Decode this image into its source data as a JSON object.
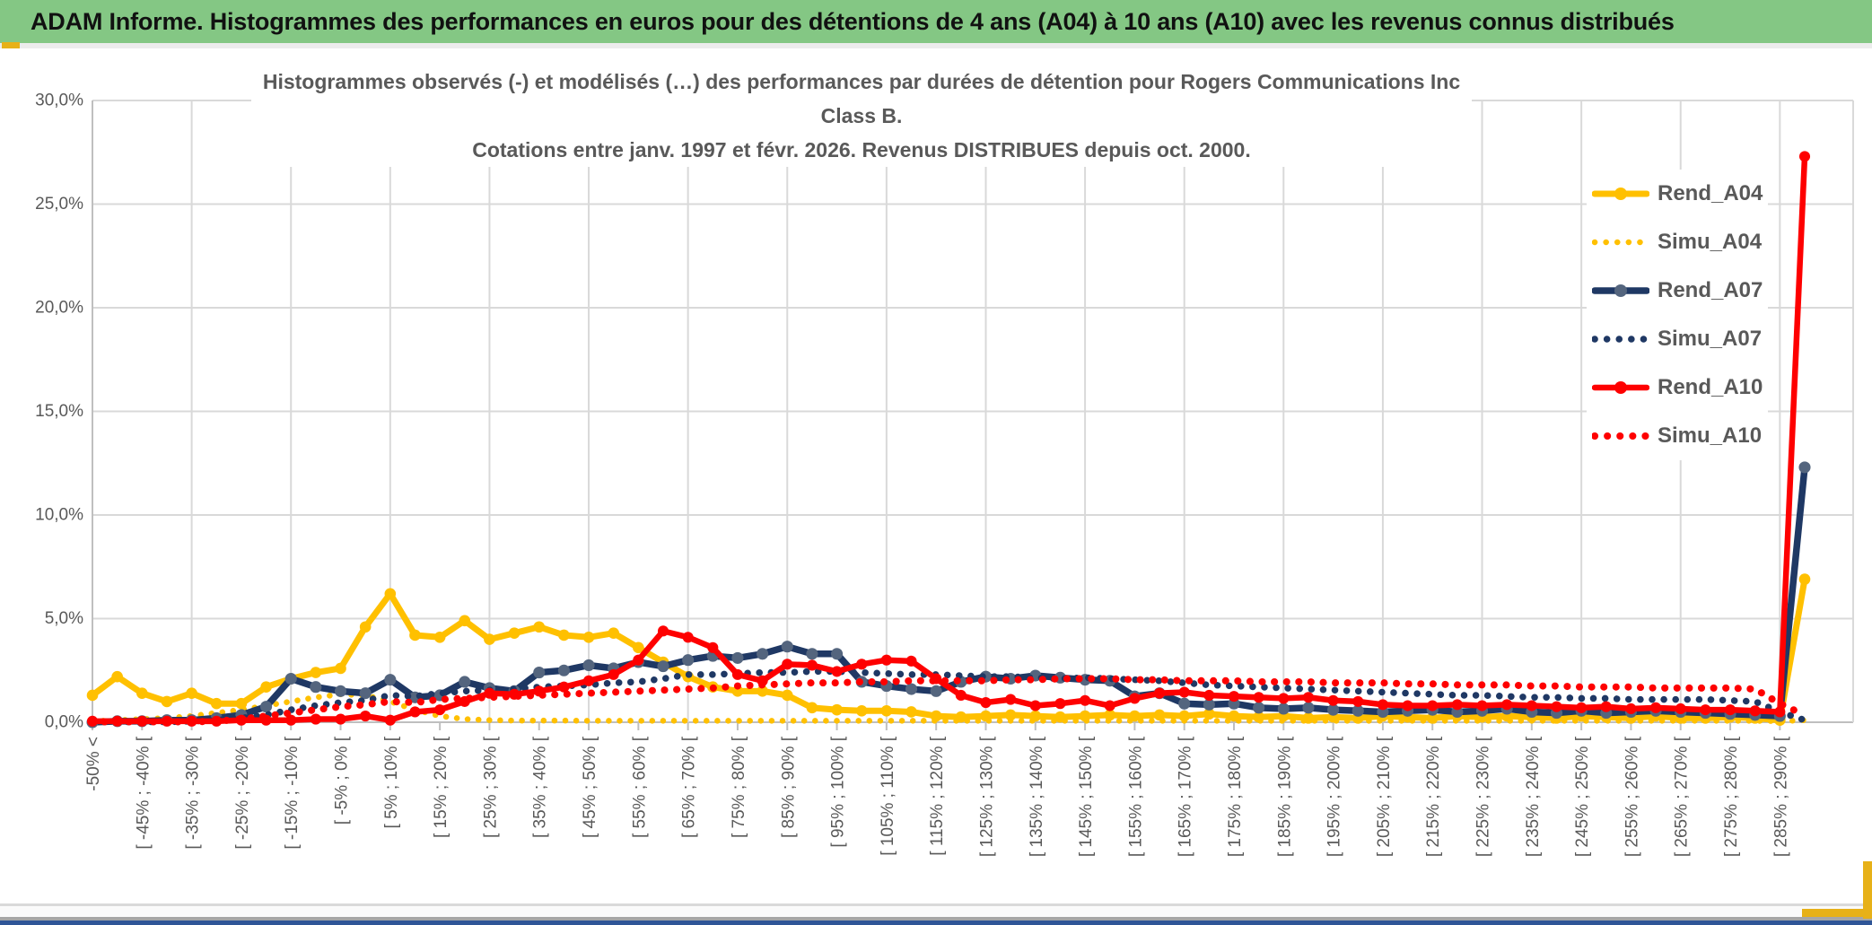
{
  "banner": {
    "title": "ADAM Informe. Histogrammes des performances en euros pour des détentions de 4 ans (A04) à 10 ans (A10) avec les revenus connus distribués",
    "background_color": "#84C784",
    "accent_color": "#E7B118"
  },
  "chart": {
    "title_line1": "Histogrammes observés (-) et modélisés (…) des performances par durées de détention pour Rogers Communications Inc Class B.",
    "title_line2": "Cotations entre janv. 1997 et févr. 2026. Revenus DISTRIBUES depuis oct. 2000.",
    "text_color": "#595959",
    "gridline_color": "#D9D9D9",
    "axis_color": "#BFBFBF"
  },
  "chart_data": {
    "type": "line",
    "title": "Histogrammes observés (-) et modélisés (…) des performances par durées de détention pour Rogers Communications Inc Class B.",
    "subtitle": "Cotations entre janv. 1997 et févr. 2026. Revenus DISTRIBUES depuis oct. 2000.",
    "ylabel": "",
    "xlabel": "",
    "ylim": [
      0,
      30
    ],
    "y_tick_labels": [
      "0,0%",
      "5,0%",
      "10,0%",
      "15,0%",
      "20,0%",
      "25,0%",
      "30,0%"
    ],
    "y_tick_values": [
      0,
      5,
      10,
      15,
      20,
      25,
      30
    ],
    "grid": "horizontal and vertical, light gray",
    "legend_position": "right-top, vertical",
    "n_points": 70,
    "x_label_interval": 2,
    "x_gridline_interval": 4,
    "x_tick_labels": [
      "-50% <",
      "[ -45% ; -40% [",
      "[ -35% ; -30% [",
      "[ -25% ; -20% [",
      "[ -15% ; -10% [",
      "[ -5% ; 0% [",
      "[ 5% ; 10% [",
      "[ 15% ; 20% [",
      "[ 25% ; 30% [",
      "[ 35% ; 40% [",
      "[ 45% ; 50% [",
      "[ 55% ; 60% [",
      "[ 65% ; 70% [",
      "[ 75% ; 80% [",
      "[ 85% ; 90% [",
      "[ 95% ; 100% [",
      "[ 105% ; 110% [",
      "[ 115% ; 120% [",
      "[ 125% ; 130% [",
      "[ 135% ; 140% [",
      "[ 145% ; 150% [",
      "[ 155% ; 160% [",
      "[ 165% ; 170% [",
      "[ 175% ; 180% [",
      "[ 185% ; 190% [",
      "[ 195% ; 200% [",
      "[ 205% ; 210% [",
      "[ 215% ; 220% [",
      "[ 225% ; 230% [",
      "[ 235% ; 240% [",
      "[ 245% ; 250% [",
      "[ 255% ; 260% [",
      "[ 265% ; 270% [",
      "[ 275% ; 280% [",
      "[ 285% ; 290% ["
    ],
    "series": [
      {
        "name": "Rend_A04",
        "style": "solid",
        "color": "#FFC000",
        "marker_color": "#FFC000",
        "line_width": 7,
        "values": [
          1.3,
          2.2,
          1.4,
          1.0,
          1.4,
          0.9,
          0.9,
          1.7,
          2.1,
          2.4,
          2.6,
          4.6,
          6.2,
          4.2,
          4.1,
          4.9,
          4.0,
          4.3,
          4.6,
          4.2,
          4.1,
          4.3,
          3.6,
          2.9,
          2.2,
          1.7,
          1.5,
          1.5,
          1.3,
          0.7,
          0.6,
          0.55,
          0.55,
          0.5,
          0.3,
          0.25,
          0.3,
          0.35,
          0.3,
          0.25,
          0.3,
          0.35,
          0.3,
          0.35,
          0.3,
          0.4,
          0.3,
          0.25,
          0.3,
          0.2,
          0.25,
          0.2,
          0.3,
          0.25,
          0.2,
          0.3,
          0.25,
          0.3,
          0.25,
          0.2,
          0.3,
          0.25,
          0.2,
          0.3,
          0.2,
          0.2,
          0.25,
          0.2,
          0.1,
          6.9
        ]
      },
      {
        "name": "Simu_A04",
        "style": "dotted",
        "color": "#FFC000",
        "line_width": 6.5,
        "values": [
          0.05,
          0.1,
          0.15,
          0.2,
          0.3,
          0.45,
          0.6,
          0.8,
          1.0,
          1.2,
          1.35,
          1.3,
          1.0,
          0.6,
          0.3,
          0.15,
          0.1,
          0.08,
          0.08,
          0.08,
          0.07,
          0.07,
          0.07,
          0.07,
          0.07,
          0.07,
          0.07,
          0.07,
          0.07,
          0.07,
          0.07,
          0.07,
          0.07,
          0.07,
          0.07,
          0.07,
          0.07,
          0.07,
          0.07,
          0.07,
          0.07,
          0.07,
          0.07,
          0.07,
          0.07,
          0.07,
          0.07,
          0.07,
          0.07,
          0.07,
          0.07,
          0.07,
          0.07,
          0.07,
          0.07,
          0.07,
          0.07,
          0.07,
          0.07,
          0.07,
          0.07,
          0.07,
          0.07,
          0.07,
          0.07,
          0.07,
          0.07,
          0.07,
          0.05,
          0.1
        ]
      },
      {
        "name": "Rend_A07",
        "style": "solid",
        "color": "#1F3864",
        "marker_color": "#54657E",
        "line_width": 7.5,
        "values": [
          0.0,
          0.05,
          0.05,
          0.1,
          0.1,
          0.2,
          0.35,
          0.75,
          2.1,
          1.7,
          1.5,
          1.4,
          2.05,
          1.2,
          1.3,
          1.95,
          1.65,
          1.5,
          2.4,
          2.5,
          2.75,
          2.6,
          2.9,
          2.7,
          3.0,
          3.2,
          3.1,
          3.3,
          3.65,
          3.3,
          3.3,
          1.95,
          1.75,
          1.6,
          1.5,
          1.95,
          2.2,
          2.1,
          2.25,
          2.15,
          2.05,
          2.0,
          1.25,
          1.4,
          0.9,
          0.85,
          0.9,
          0.7,
          0.65,
          0.7,
          0.6,
          0.55,
          0.5,
          0.55,
          0.6,
          0.5,
          0.55,
          0.65,
          0.5,
          0.45,
          0.55,
          0.45,
          0.5,
          0.55,
          0.5,
          0.45,
          0.4,
          0.35,
          0.3,
          12.3
        ]
      },
      {
        "name": "Simu_A07",
        "style": "dotted",
        "color": "#1F3864",
        "line_width": 7.5,
        "values": [
          0.02,
          0.02,
          0.02,
          0.02,
          0.05,
          0.1,
          0.2,
          0.35,
          0.6,
          0.8,
          0.95,
          1.05,
          1.3,
          1.25,
          1.4,
          1.5,
          1.55,
          1.6,
          1.7,
          1.75,
          1.8,
          1.9,
          1.95,
          2.1,
          2.3,
          2.3,
          2.35,
          2.4,
          2.4,
          2.45,
          2.45,
          2.4,
          2.35,
          2.3,
          2.3,
          2.25,
          2.2,
          2.2,
          2.15,
          2.1,
          2.15,
          2.1,
          2.05,
          2.0,
          1.9,
          1.8,
          1.75,
          1.7,
          1.65,
          1.6,
          1.55,
          1.5,
          1.45,
          1.4,
          1.35,
          1.3,
          1.3,
          1.25,
          1.2,
          1.2,
          1.15,
          1.15,
          1.1,
          1.1,
          1.1,
          1.1,
          1.05,
          1.0,
          0.5,
          0.1
        ]
      },
      {
        "name": "Rend_A10",
        "style": "solid",
        "color": "#FE0000",
        "marker_color": "#FE0000",
        "line_width": 6.5,
        "values": [
          0.05,
          0.05,
          0.05,
          0.05,
          0.05,
          0.05,
          0.1,
          0.1,
          0.1,
          0.15,
          0.15,
          0.3,
          0.1,
          0.5,
          0.6,
          1.0,
          1.4,
          1.35,
          1.5,
          1.7,
          2.0,
          2.3,
          3.0,
          4.4,
          4.1,
          3.6,
          2.3,
          2.0,
          2.8,
          2.75,
          2.45,
          2.8,
          3.0,
          2.95,
          2.1,
          1.3,
          0.95,
          1.1,
          0.8,
          0.9,
          1.05,
          0.8,
          1.15,
          1.4,
          1.45,
          1.3,
          1.25,
          1.2,
          1.15,
          1.2,
          1.05,
          1.0,
          0.85,
          0.8,
          0.8,
          0.85,
          0.8,
          0.85,
          0.8,
          0.75,
          0.7,
          0.75,
          0.65,
          0.7,
          0.65,
          0.6,
          0.6,
          0.55,
          0.5,
          27.3
        ]
      },
      {
        "name": "Simu_A10",
        "style": "dotted",
        "color": "#FE0000",
        "line_width": 8,
        "values": [
          0.02,
          0.02,
          0.02,
          0.02,
          0.02,
          0.05,
          0.15,
          0.3,
          0.45,
          0.6,
          0.75,
          0.85,
          1.0,
          0.95,
          1.1,
          1.15,
          1.2,
          1.25,
          1.3,
          1.35,
          1.4,
          1.45,
          1.5,
          1.55,
          1.6,
          1.65,
          1.75,
          1.8,
          1.85,
          1.9,
          1.9,
          1.95,
          1.95,
          2.0,
          2.0,
          2.0,
          2.0,
          2.05,
          2.05,
          2.1,
          2.1,
          2.1,
          2.05,
          2.05,
          2.0,
          2.0,
          2.0,
          1.95,
          1.95,
          1.95,
          1.9,
          1.9,
          1.9,
          1.85,
          1.85,
          1.8,
          1.8,
          1.8,
          1.75,
          1.75,
          1.7,
          1.7,
          1.7,
          1.65,
          1.65,
          1.65,
          1.65,
          1.6,
          0.9,
          0.35
        ]
      }
    ]
  },
  "legend": {
    "items": [
      "Rend_A04",
      "Simu_A04",
      "Rend_A07",
      "Simu_A07",
      "Rend_A10",
      "Simu_A10"
    ]
  }
}
